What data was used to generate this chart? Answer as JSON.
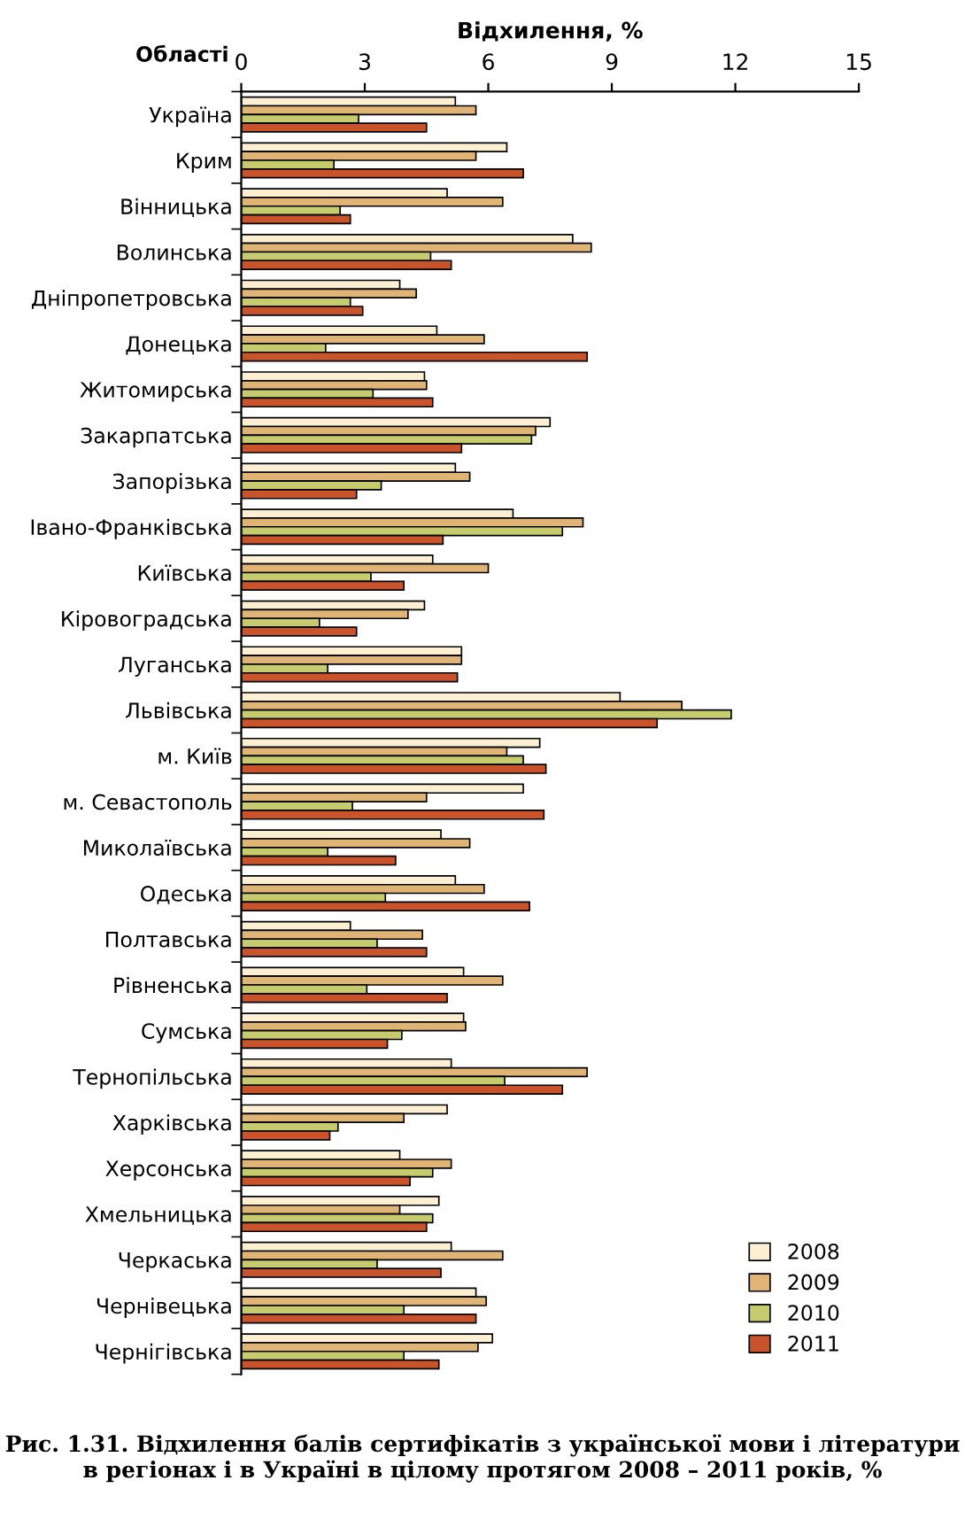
{
  "chart_data": {
    "type": "bar",
    "orientation": "horizontal",
    "title": "Рис. 1.31. Відхилення балів сертифікатів з української мови і літератури в регіонах і в Україні в цілому протягом 2008 – 2011 років, %",
    "xlabel": "Відхилення, %",
    "ylabel": "Області",
    "categories": [
      "Україна",
      "Крим",
      "Вінницька",
      "Волинська",
      "Дніпропетровська",
      "Донецька",
      "Житомирська",
      "Закарпатська",
      "Запорізька",
      "Івано-Франківська",
      "Київська",
      "Кіровоградська",
      "Луганська",
      "Львівська",
      "м. Київ",
      "м. Севастополь",
      "Миколаївська",
      "Одеська",
      "Полтавська",
      "Рівненська",
      "Сумська",
      "Тернопільська",
      "Харківська",
      "Херсонська",
      "Хмельницька",
      "Черкаська",
      "Чернівецька",
      "Чернігівська"
    ],
    "series": [
      {
        "name": "2008",
        "color": "#fdf0d2",
        "values": [
          5.2,
          6.45,
          5.0,
          8.05,
          3.85,
          4.75,
          4.45,
          7.5,
          5.2,
          6.6,
          4.65,
          4.45,
          5.35,
          9.2,
          7.25,
          6.85,
          4.85,
          5.2,
          2.65,
          5.4,
          5.4,
          5.1,
          5.0,
          3.85,
          4.8,
          5.1,
          5.7,
          6.1
        ]
      },
      {
        "name": "2009",
        "color": "#e0b474",
        "values": [
          5.7,
          5.7,
          6.35,
          8.5,
          4.25,
          5.9,
          4.5,
          7.15,
          5.55,
          8.3,
          6.0,
          4.05,
          5.35,
          10.7,
          6.45,
          4.5,
          5.55,
          5.9,
          4.4,
          6.35,
          5.45,
          8.4,
          3.95,
          5.1,
          3.85,
          6.35,
          5.95,
          5.75
        ]
      },
      {
        "name": "2010",
        "color": "#c6cc6e",
        "values": [
          2.85,
          2.25,
          2.4,
          4.6,
          2.65,
          2.05,
          3.2,
          7.05,
          3.4,
          7.8,
          3.15,
          1.9,
          2.1,
          11.9,
          6.85,
          2.7,
          2.1,
          3.5,
          3.3,
          3.05,
          3.9,
          6.4,
          2.35,
          4.65,
          4.65,
          3.3,
          3.95,
          3.95
        ]
      },
      {
        "name": "2011",
        "color": "#c9532a",
        "values": [
          4.5,
          6.85,
          2.65,
          5.1,
          2.95,
          8.4,
          4.65,
          5.35,
          2.8,
          4.9,
          3.95,
          2.8,
          5.25,
          10.1,
          7.4,
          7.35,
          3.75,
          7.0,
          4.5,
          5.0,
          3.55,
          7.8,
          2.15,
          4.1,
          4.5,
          4.85,
          5.7,
          4.8
        ]
      }
    ],
    "xlim": [
      0,
      15
    ],
    "xticks": [
      0,
      3,
      6,
      9,
      12,
      15
    ],
    "grid": false,
    "legend": "bottom right"
  }
}
